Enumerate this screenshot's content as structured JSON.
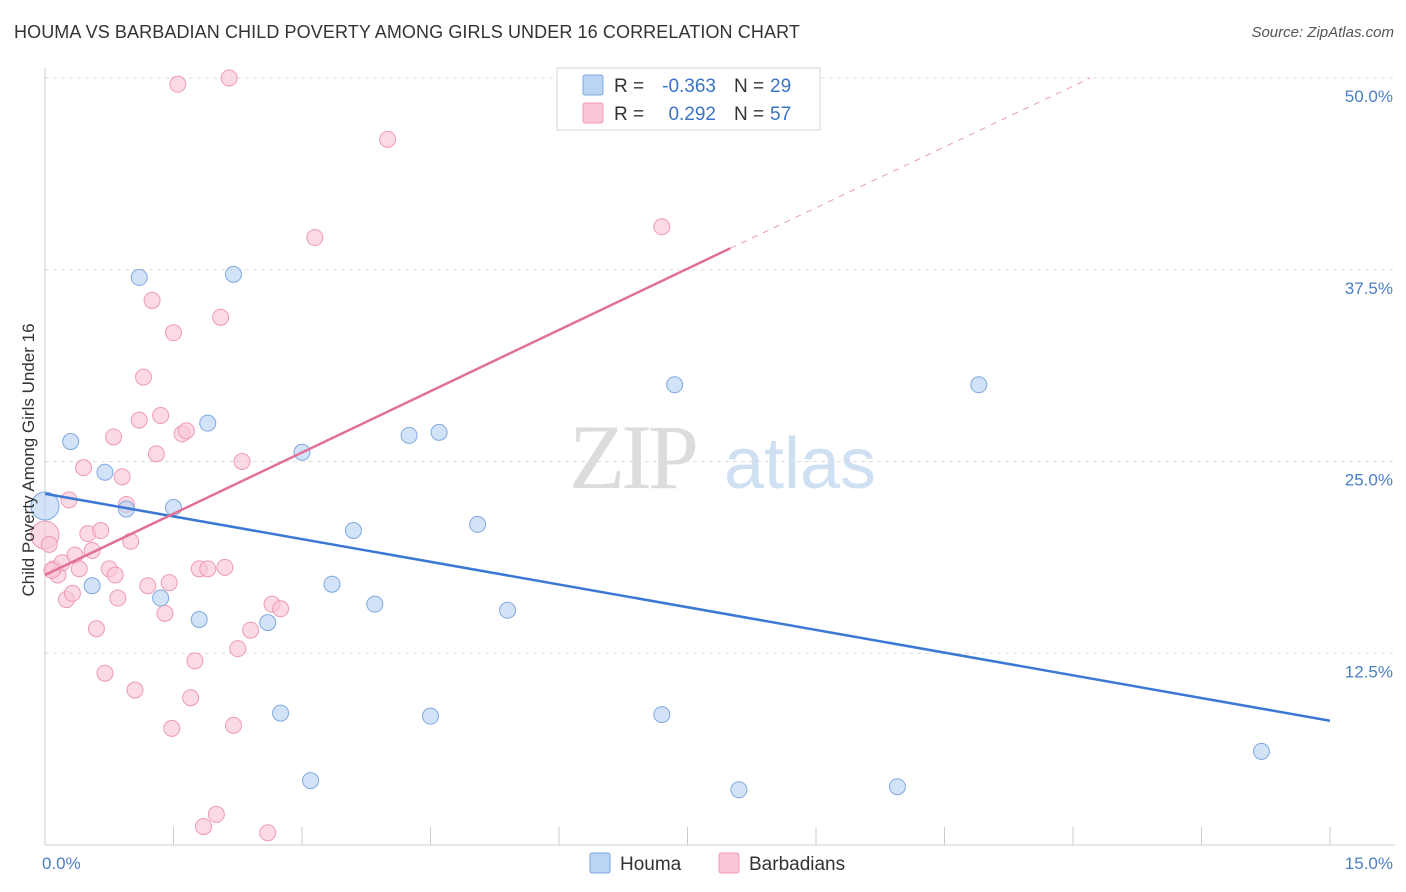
{
  "title": "HOUMA VS BARBADIAN CHILD POVERTY AMONG GIRLS UNDER 16 CORRELATION CHART",
  "source": "Source: ZipAtlas.com",
  "watermark": {
    "zip": "ZIP",
    "atlas": "atlas"
  },
  "legend": {
    "r_label": "R =",
    "n_label": "N =",
    "rows": [
      {
        "r": "-0.363",
        "n": "29",
        "color": "#a7c7ef"
      },
      {
        "r": "0.292",
        "n": "57",
        "color": "#f6b3c9"
      }
    ]
  },
  "colors": {
    "houma_fill": "#bcd4f3",
    "houma_stroke": "#7ea8e0",
    "houma_line": "#3a78d4",
    "barb_fill": "#f9c6d6",
    "barb_stroke": "#ee9ab6",
    "barb_line": "#e0709a",
    "grid": "#dddddd",
    "tick_text": "#4a7fc1"
  },
  "chart_data": {
    "type": "scatter",
    "ylabel": "Child Poverty Among Girls Under 16",
    "xlim": [
      0,
      15
    ],
    "ylim": [
      0,
      50
    ],
    "x_tick_labels": [
      "0.0%",
      "15.0%"
    ],
    "y_ticks": [
      12.5,
      25.0,
      37.5,
      50.0
    ],
    "y_tick_labels": [
      "12.5%",
      "25.0%",
      "37.5%",
      "50.0%"
    ],
    "series": [
      {
        "name": "Houma",
        "points": [
          [
            0.0,
            22.1
          ],
          [
            0.3,
            26.3
          ],
          [
            0.55,
            16.9
          ],
          [
            0.7,
            24.3
          ],
          [
            0.95,
            21.9
          ],
          [
            1.1,
            37.0
          ],
          [
            1.35,
            16.1
          ],
          [
            1.5,
            22.0
          ],
          [
            1.8,
            14.7
          ],
          [
            1.9,
            27.5
          ],
          [
            2.2,
            37.2
          ],
          [
            2.6,
            14.5
          ],
          [
            2.75,
            8.6
          ],
          [
            3.0,
            25.6
          ],
          [
            3.1,
            4.2
          ],
          [
            3.35,
            17.0
          ],
          [
            3.6,
            20.5
          ],
          [
            3.85,
            15.7
          ],
          [
            4.25,
            26.7
          ],
          [
            4.5,
            8.4
          ],
          [
            4.6,
            26.9
          ],
          [
            5.05,
            20.9
          ],
          [
            5.4,
            15.3
          ],
          [
            7.2,
            8.5
          ],
          [
            7.35,
            30.0
          ],
          [
            8.1,
            3.6
          ],
          [
            9.95,
            3.8
          ],
          [
            10.9,
            30.0
          ],
          [
            14.2,
            6.1
          ]
        ],
        "trend": {
          "x": [
            0.0,
            15.0
          ],
          "y": [
            22.9,
            8.1
          ]
        }
      },
      {
        "name": "Barbadians",
        "points": [
          [
            0.0,
            20.2
          ],
          [
            0.05,
            19.6
          ],
          [
            0.1,
            18.0
          ],
          [
            0.15,
            17.6
          ],
          [
            0.2,
            18.4
          ],
          [
            0.25,
            16.0
          ],
          [
            0.28,
            22.5
          ],
          [
            0.32,
            16.4
          ],
          [
            0.35,
            18.9
          ],
          [
            0.4,
            18.0
          ],
          [
            0.45,
            24.6
          ],
          [
            0.5,
            20.3
          ],
          [
            0.55,
            19.2
          ],
          [
            0.6,
            14.1
          ],
          [
            0.65,
            20.5
          ],
          [
            0.7,
            11.2
          ],
          [
            0.75,
            18.0
          ],
          [
            0.8,
            26.6
          ],
          [
            0.82,
            17.6
          ],
          [
            0.85,
            16.1
          ],
          [
            0.9,
            24.0
          ],
          [
            0.95,
            22.2
          ],
          [
            1.0,
            19.8
          ],
          [
            1.05,
            10.1
          ],
          [
            1.1,
            27.7
          ],
          [
            1.15,
            30.5
          ],
          [
            1.2,
            16.9
          ],
          [
            1.25,
            35.5
          ],
          [
            1.3,
            25.5
          ],
          [
            1.35,
            28.0
          ],
          [
            1.4,
            15.1
          ],
          [
            1.45,
            17.1
          ],
          [
            1.48,
            7.6
          ],
          [
            1.5,
            33.4
          ],
          [
            1.55,
            49.6
          ],
          [
            1.6,
            26.8
          ],
          [
            1.65,
            27.0
          ],
          [
            1.7,
            9.6
          ],
          [
            1.75,
            12.0
          ],
          [
            1.8,
            18.0
          ],
          [
            1.85,
            1.2
          ],
          [
            1.9,
            18.0
          ],
          [
            2.0,
            2.0
          ],
          [
            2.05,
            34.4
          ],
          [
            2.1,
            18.1
          ],
          [
            2.15,
            50.0
          ],
          [
            2.2,
            7.8
          ],
          [
            2.25,
            12.8
          ],
          [
            2.3,
            25.0
          ],
          [
            2.4,
            14.0
          ],
          [
            2.6,
            0.8
          ],
          [
            2.65,
            15.7
          ],
          [
            2.75,
            15.4
          ],
          [
            3.15,
            39.6
          ],
          [
            4.0,
            46.0
          ],
          [
            7.2,
            40.3
          ],
          [
            0.08,
            17.9
          ]
        ],
        "trend": {
          "x": [
            0.0,
            8.0
          ],
          "y": [
            17.6,
            38.9
          ]
        },
        "trend_extension": {
          "x": [
            8.0,
            12.2
          ],
          "y": [
            38.9,
            50.0
          ]
        }
      }
    ],
    "legend_position": "top-center",
    "bottom_legend": [
      "Houma",
      "Barbadians"
    ]
  }
}
